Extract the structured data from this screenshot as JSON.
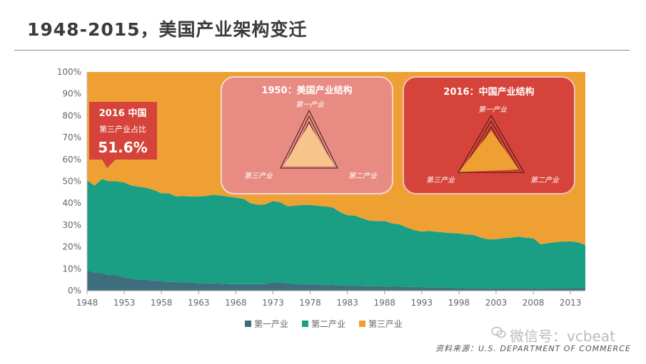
{
  "title": "1948-2015，美国产业架构变迁",
  "source": "资料来源：U.S. DEPARTMENT OF COMMERCE",
  "watermark": "微信号：vcbeat",
  "colors": {
    "primary": "#3e6e7d",
    "secondary": "#1a9e84",
    "tertiary": "#eea132",
    "callout": "#d6433a",
    "panel1950": "#e88b83",
    "panel2016": "#d6433a"
  },
  "chart_data": {
    "type": "area",
    "stacked": true,
    "x": [
      1948,
      1949,
      1950,
      1951,
      1952,
      1953,
      1954,
      1955,
      1956,
      1957,
      1958,
      1959,
      1960,
      1961,
      1962,
      1963,
      1964,
      1965,
      1966,
      1967,
      1968,
      1969,
      1970,
      1971,
      1972,
      1973,
      1974,
      1975,
      1976,
      1977,
      1978,
      1979,
      1980,
      1981,
      1982,
      1983,
      1984,
      1985,
      1986,
      1987,
      1988,
      1989,
      1990,
      1991,
      1992,
      1993,
      1994,
      1995,
      1996,
      1997,
      1998,
      1999,
      2000,
      2001,
      2002,
      2003,
      2004,
      2005,
      2006,
      2007,
      2008,
      2009,
      2010,
      2011,
      2012,
      2013,
      2014,
      2015
    ],
    "xticks": [
      "1948",
      "1953",
      "1958",
      "1963",
      "1968",
      "1973",
      "1978",
      "1983",
      "1988",
      "1993",
      "1998",
      "2003",
      "2008",
      "2013"
    ],
    "yticks": [
      "0%",
      "10%",
      "20%",
      "30%",
      "40%",
      "50%",
      "60%",
      "70%",
      "80%",
      "90%",
      "100%"
    ],
    "ylim": [
      0,
      100
    ],
    "series": [
      {
        "name": "第一产业",
        "values": [
          9.5,
          8,
          8,
          7,
          7,
          6,
          5.5,
          5,
          5,
          4.5,
          4.5,
          4,
          4,
          3.8,
          3.8,
          3.5,
          3.3,
          3.3,
          3.2,
          3,
          3,
          3,
          3,
          3,
          3,
          4,
          3.6,
          3.5,
          3.1,
          2.9,
          2.9,
          2.8,
          2.5,
          2.6,
          2.5,
          2.2,
          2.3,
          2.1,
          2,
          2,
          1.9,
          1.8,
          1.8,
          1.7,
          1.7,
          1.6,
          1.5,
          1.4,
          1.4,
          1.3,
          1.2,
          1.1,
          1,
          1,
          0.9,
          1,
          1.1,
          1,
          1,
          1,
          1,
          0.9,
          1,
          1.2,
          1.2,
          1.2,
          1.2,
          1.1
        ]
      },
      {
        "name": "第二产业",
        "values": [
          41,
          40,
          43,
          43,
          43,
          43.5,
          42.5,
          42.5,
          42,
          41.5,
          40,
          40.5,
          39,
          39.5,
          39.2,
          39.5,
          40,
          40.5,
          40.3,
          40,
          39.5,
          39,
          37,
          36.2,
          36.5,
          37,
          36.8,
          35,
          35.8,
          36.3,
          36.3,
          36,
          36,
          35.5,
          33.5,
          32.3,
          32,
          31,
          30,
          29.8,
          30,
          29,
          28.5,
          27.2,
          26,
          25.4,
          25.8,
          25.5,
          25.2,
          25,
          25,
          24.6,
          24.5,
          23.2,
          22.5,
          22.5,
          22.9,
          23.2,
          23.7,
          23.2,
          23,
          20.3,
          20.8,
          20.9,
          21.3,
          21.3,
          20.9,
          19.8
        ]
      },
      {
        "name": "第三产业",
        "values": [
          49.5,
          52,
          49,
          50,
          50,
          50.5,
          52,
          52.5,
          53,
          54,
          55.5,
          55.5,
          57,
          56.7,
          57,
          57,
          56.7,
          56.2,
          56.5,
          57,
          57.5,
          58,
          60,
          60.8,
          60.5,
          59,
          59.6,
          61.5,
          61.1,
          60.8,
          60.8,
          61.2,
          61.5,
          61.9,
          64,
          65.5,
          65.7,
          66.9,
          68,
          68.2,
          68.1,
          69.2,
          69.7,
          71.1,
          72.3,
          73,
          72.7,
          73.1,
          73.4,
          73.7,
          73.8,
          74.3,
          74.5,
          75.8,
          76.6,
          76.5,
          76,
          75.8,
          75.3,
          75.8,
          76,
          78.8,
          78.2,
          77.9,
          77.5,
          77.5,
          77.9,
          79.1
        ]
      }
    ],
    "legend_position": "bottom"
  },
  "callout_china": {
    "line1": "2016 中国",
    "line2": "第三产业占比",
    "value": "51.6%"
  },
  "radar_1950": {
    "title": "1950：美国产业结构",
    "top": "第一产业",
    "left": "第三产业",
    "right": "第二产业",
    "values": {
      "primary": 0.65,
      "secondary": 0.9,
      "tertiary": 0.9
    }
  },
  "radar_2016": {
    "title": "2016：中国产业结构",
    "top": "第一产业",
    "left": "第三产业",
    "right": "第二产业",
    "values": {
      "primary": 0.6,
      "secondary": 0.85,
      "tertiary": 0.98
    }
  }
}
